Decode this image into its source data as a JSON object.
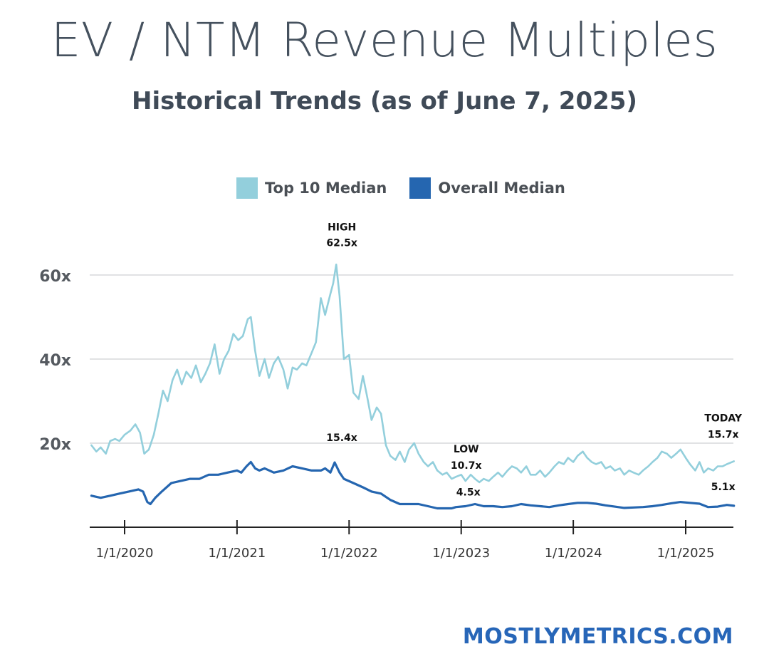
{
  "header": {
    "title": "EV / NTM Revenue Multiples",
    "subtitle": "Historical Trends (as of June 7, 2025)"
  },
  "footer": {
    "site": "MOSTLYMETRICS.COM"
  },
  "colors": {
    "top10": "#93cfdc",
    "overall": "#2566b0",
    "grid": "#d7d9dc",
    "axis": "#222222",
    "text": "#555a60",
    "brand": "#2766b8"
  },
  "chart_data": {
    "type": "line",
    "legend": [
      {
        "key": "top10",
        "label": "Top 10 Median"
      },
      {
        "key": "overall",
        "label": "Overall Median"
      }
    ],
    "legend_position": "top-center",
    "grid": true,
    "ylim": [
      0,
      62.5
    ],
    "yticks": [
      {
        "value": 20,
        "label": "20x"
      },
      {
        "value": 40,
        "label": "40x"
      },
      {
        "value": 60,
        "label": "60x"
      }
    ],
    "xlim": [
      "2019-09-15",
      "2025-06-07"
    ],
    "xticks": [
      {
        "date": "2020-01-01",
        "label": "1/1/2020"
      },
      {
        "date": "2021-01-01",
        "label": "1/1/2021"
      },
      {
        "date": "2022-01-01",
        "label": "1/1/2022"
      },
      {
        "date": "2023-01-01",
        "label": "1/1/2023"
      },
      {
        "date": "2024-01-01",
        "label": "1/1/2024"
      },
      {
        "date": "2025-01-01",
        "label": "1/1/2025"
      }
    ],
    "series": [
      {
        "name": "Top 10 Median",
        "key": "top10",
        "points": [
          [
            "2019-09-15",
            19.5
          ],
          [
            "2019-10-01",
            18.0
          ],
          [
            "2019-10-15",
            19.0
          ],
          [
            "2019-11-01",
            17.5
          ],
          [
            "2019-11-15",
            20.5
          ],
          [
            "2019-12-01",
            21.0
          ],
          [
            "2019-12-15",
            20.5
          ],
          [
            "2020-01-01",
            22.0
          ],
          [
            "2020-01-20",
            23.0
          ],
          [
            "2020-02-05",
            24.5
          ],
          [
            "2020-02-20",
            22.5
          ],
          [
            "2020-03-05",
            17.5
          ],
          [
            "2020-03-20",
            18.5
          ],
          [
            "2020-04-05",
            22.0
          ],
          [
            "2020-04-20",
            27.0
          ],
          [
            "2020-05-05",
            32.5
          ],
          [
            "2020-05-20",
            30.0
          ],
          [
            "2020-06-05",
            35.0
          ],
          [
            "2020-06-20",
            37.5
          ],
          [
            "2020-07-05",
            34.0
          ],
          [
            "2020-07-20",
            37.0
          ],
          [
            "2020-08-05",
            35.5
          ],
          [
            "2020-08-20",
            38.5
          ],
          [
            "2020-09-05",
            34.5
          ],
          [
            "2020-09-20",
            36.5
          ],
          [
            "2020-10-05",
            39.0
          ],
          [
            "2020-10-20",
            43.5
          ],
          [
            "2020-11-05",
            36.5
          ],
          [
            "2020-11-20",
            40.0
          ],
          [
            "2020-12-05",
            42.0
          ],
          [
            "2020-12-20",
            46.0
          ],
          [
            "2021-01-05",
            44.5
          ],
          [
            "2021-01-20",
            45.5
          ],
          [
            "2021-02-05",
            49.5
          ],
          [
            "2021-02-15",
            50.0
          ],
          [
            "2021-03-01",
            42.0
          ],
          [
            "2021-03-15",
            36.0
          ],
          [
            "2021-04-01",
            40.0
          ],
          [
            "2021-04-15",
            35.5
          ],
          [
            "2021-05-01",
            39.0
          ],
          [
            "2021-05-15",
            40.5
          ],
          [
            "2021-06-01",
            37.5
          ],
          [
            "2021-06-15",
            33.0
          ],
          [
            "2021-07-01",
            38.0
          ],
          [
            "2021-07-15",
            37.5
          ],
          [
            "2021-08-01",
            39.0
          ],
          [
            "2021-08-15",
            38.5
          ],
          [
            "2021-09-01",
            41.5
          ],
          [
            "2021-09-15",
            44.0
          ],
          [
            "2021-10-01",
            54.5
          ],
          [
            "2021-10-15",
            50.5
          ],
          [
            "2021-11-01",
            55.5
          ],
          [
            "2021-11-10",
            58.0
          ],
          [
            "2021-11-20",
            62.5
          ],
          [
            "2021-12-01",
            55.0
          ],
          [
            "2021-12-15",
            40.0
          ],
          [
            "2022-01-01",
            41.0
          ],
          [
            "2022-01-15",
            32.0
          ],
          [
            "2022-02-01",
            30.5
          ],
          [
            "2022-02-15",
            36.0
          ],
          [
            "2022-03-01",
            31.0
          ],
          [
            "2022-03-15",
            25.5
          ],
          [
            "2022-04-01",
            28.5
          ],
          [
            "2022-04-15",
            27.0
          ],
          [
            "2022-05-01",
            19.5
          ],
          [
            "2022-05-15",
            17.0
          ],
          [
            "2022-06-01",
            16.0
          ],
          [
            "2022-06-15",
            18.0
          ],
          [
            "2022-07-01",
            15.5
          ],
          [
            "2022-07-15",
            18.5
          ],
          [
            "2022-08-01",
            20.0
          ],
          [
            "2022-08-15",
            17.5
          ],
          [
            "2022-09-01",
            15.5
          ],
          [
            "2022-09-15",
            14.5
          ],
          [
            "2022-10-01",
            15.5
          ],
          [
            "2022-10-15",
            13.5
          ],
          [
            "2022-11-01",
            12.5
          ],
          [
            "2022-11-15",
            13.0
          ],
          [
            "2022-12-01",
            11.5
          ],
          [
            "2022-12-15",
            12.0
          ],
          [
            "2023-01-01",
            12.5
          ],
          [
            "2023-01-15",
            11.0
          ],
          [
            "2023-02-01",
            12.5
          ],
          [
            "2023-02-15",
            11.5
          ],
          [
            "2023-03-01",
            10.7
          ],
          [
            "2023-03-15",
            11.5
          ],
          [
            "2023-04-01",
            11.0
          ],
          [
            "2023-04-15",
            12.0
          ],
          [
            "2023-05-01",
            13.0
          ],
          [
            "2023-05-15",
            12.0
          ],
          [
            "2023-06-01",
            13.5
          ],
          [
            "2023-06-15",
            14.5
          ],
          [
            "2023-07-01",
            14.0
          ],
          [
            "2023-07-15",
            13.0
          ],
          [
            "2023-08-01",
            14.5
          ],
          [
            "2023-08-15",
            12.5
          ],
          [
            "2023-09-01",
            12.5
          ],
          [
            "2023-09-15",
            13.5
          ],
          [
            "2023-10-01",
            12.0
          ],
          [
            "2023-10-15",
            13.0
          ],
          [
            "2023-11-01",
            14.5
          ],
          [
            "2023-11-15",
            15.5
          ],
          [
            "2023-12-01",
            15.0
          ],
          [
            "2023-12-15",
            16.5
          ],
          [
            "2024-01-01",
            15.5
          ],
          [
            "2024-01-15",
            17.0
          ],
          [
            "2024-02-01",
            18.0
          ],
          [
            "2024-02-15",
            16.5
          ],
          [
            "2024-03-01",
            15.5
          ],
          [
            "2024-03-15",
            15.0
          ],
          [
            "2024-04-01",
            15.5
          ],
          [
            "2024-04-15",
            14.0
          ],
          [
            "2024-05-01",
            14.5
          ],
          [
            "2024-05-15",
            13.5
          ],
          [
            "2024-06-01",
            14.0
          ],
          [
            "2024-06-15",
            12.5
          ],
          [
            "2024-07-01",
            13.5
          ],
          [
            "2024-07-15",
            13.0
          ],
          [
            "2024-08-01",
            12.5
          ],
          [
            "2024-08-15",
            13.5
          ],
          [
            "2024-09-01",
            14.5
          ],
          [
            "2024-09-15",
            15.5
          ],
          [
            "2024-10-01",
            16.5
          ],
          [
            "2024-10-15",
            18.0
          ],
          [
            "2024-11-01",
            17.5
          ],
          [
            "2024-11-15",
            16.5
          ],
          [
            "2024-12-01",
            17.5
          ],
          [
            "2024-12-15",
            18.5
          ],
          [
            "2025-01-01",
            16.5
          ],
          [
            "2025-01-15",
            15.0
          ],
          [
            "2025-02-01",
            13.5
          ],
          [
            "2025-02-15",
            15.5
          ],
          [
            "2025-03-01",
            13.0
          ],
          [
            "2025-03-15",
            14.0
          ],
          [
            "2025-04-01",
            13.5
          ],
          [
            "2025-04-15",
            14.5
          ],
          [
            "2025-05-01",
            14.5
          ],
          [
            "2025-05-15",
            15.0
          ],
          [
            "2025-06-07",
            15.7
          ]
        ]
      },
      {
        "name": "Overall Median",
        "key": "overall",
        "points": [
          [
            "2019-09-15",
            7.5
          ],
          [
            "2019-10-15",
            7.0
          ],
          [
            "2019-11-15",
            7.5
          ],
          [
            "2019-12-15",
            8.0
          ],
          [
            "2020-01-15",
            8.5
          ],
          [
            "2020-02-15",
            9.0
          ],
          [
            "2020-03-01",
            8.5
          ],
          [
            "2020-03-15",
            6.0
          ],
          [
            "2020-03-25",
            5.5
          ],
          [
            "2020-04-10",
            7.0
          ],
          [
            "2020-05-01",
            8.5
          ],
          [
            "2020-06-01",
            10.5
          ],
          [
            "2020-07-01",
            11.0
          ],
          [
            "2020-08-01",
            11.5
          ],
          [
            "2020-09-01",
            11.5
          ],
          [
            "2020-10-01",
            12.5
          ],
          [
            "2020-11-01",
            12.5
          ],
          [
            "2020-12-01",
            13.0
          ],
          [
            "2021-01-01",
            13.5
          ],
          [
            "2021-01-15",
            13.0
          ],
          [
            "2021-02-01",
            14.5
          ],
          [
            "2021-02-15",
            15.5
          ],
          [
            "2021-03-01",
            14.0
          ],
          [
            "2021-03-15",
            13.5
          ],
          [
            "2021-04-01",
            14.0
          ],
          [
            "2021-05-01",
            13.0
          ],
          [
            "2021-06-01",
            13.5
          ],
          [
            "2021-07-01",
            14.5
          ],
          [
            "2021-08-01",
            14.0
          ],
          [
            "2021-09-01",
            13.5
          ],
          [
            "2021-10-01",
            13.5
          ],
          [
            "2021-10-15",
            14.0
          ],
          [
            "2021-11-01",
            13.0
          ],
          [
            "2021-11-15",
            15.4
          ],
          [
            "2021-12-01",
            13.0
          ],
          [
            "2021-12-15",
            11.5
          ],
          [
            "2022-01-15",
            10.5
          ],
          [
            "2022-02-15",
            9.5
          ],
          [
            "2022-03-15",
            8.5
          ],
          [
            "2022-04-15",
            8.0
          ],
          [
            "2022-05-15",
            6.5
          ],
          [
            "2022-06-15",
            5.5
          ],
          [
            "2022-07-15",
            5.5
          ],
          [
            "2022-08-15",
            5.5
          ],
          [
            "2022-09-15",
            5.0
          ],
          [
            "2022-10-15",
            4.5
          ],
          [
            "2022-11-15",
            4.5
          ],
          [
            "2022-12-01",
            4.5
          ],
          [
            "2022-12-15",
            4.8
          ],
          [
            "2023-01-15",
            5.0
          ],
          [
            "2023-02-15",
            5.5
          ],
          [
            "2023-03-15",
            5.0
          ],
          [
            "2023-04-15",
            5.0
          ],
          [
            "2023-05-15",
            4.8
          ],
          [
            "2023-06-15",
            5.0
          ],
          [
            "2023-07-15",
            5.5
          ],
          [
            "2023-08-15",
            5.2
          ],
          [
            "2023-09-15",
            5.0
          ],
          [
            "2023-10-15",
            4.8
          ],
          [
            "2023-11-15",
            5.2
          ],
          [
            "2023-12-15",
            5.5
          ],
          [
            "2024-01-15",
            5.8
          ],
          [
            "2024-02-15",
            5.8
          ],
          [
            "2024-03-15",
            5.6
          ],
          [
            "2024-04-15",
            5.2
          ],
          [
            "2024-05-15",
            4.9
          ],
          [
            "2024-06-15",
            4.6
          ],
          [
            "2024-07-15",
            4.7
          ],
          [
            "2024-08-15",
            4.8
          ],
          [
            "2024-09-15",
            5.0
          ],
          [
            "2024-10-15",
            5.3
          ],
          [
            "2024-11-15",
            5.7
          ],
          [
            "2024-12-15",
            6.0
          ],
          [
            "2025-01-15",
            5.8
          ],
          [
            "2025-02-15",
            5.6
          ],
          [
            "2025-03-15",
            4.8
          ],
          [
            "2025-04-15",
            4.9
          ],
          [
            "2025-05-15",
            5.3
          ],
          [
            "2025-06-07",
            5.1
          ]
        ]
      }
    ],
    "annotations": [
      {
        "key": "high",
        "lines": [
          "HIGH",
          "62.5x"
        ],
        "x": "2021-11-20",
        "y": 62.5,
        "series": "top10"
      },
      {
        "key": "high_overall",
        "lines": [
          "15.4x"
        ],
        "x": "2021-11-15",
        "y": 15.4,
        "series": "overall"
      },
      {
        "key": "low",
        "lines": [
          "LOW",
          "10.7x"
        ],
        "x": "2023-01-01",
        "y": 10.7,
        "series": "top10"
      },
      {
        "key": "low_overall",
        "lines": [
          "4.5x"
        ],
        "x": "2023-01-01",
        "y": 4.5,
        "series": "overall"
      },
      {
        "key": "today",
        "lines": [
          "TODAY",
          "15.7x"
        ],
        "x": "2025-06-07",
        "y": 15.7,
        "series": "top10"
      },
      {
        "key": "today_overall",
        "lines": [
          "5.1x"
        ],
        "x": "2025-06-07",
        "y": 5.1,
        "series": "overall"
      }
    ]
  }
}
